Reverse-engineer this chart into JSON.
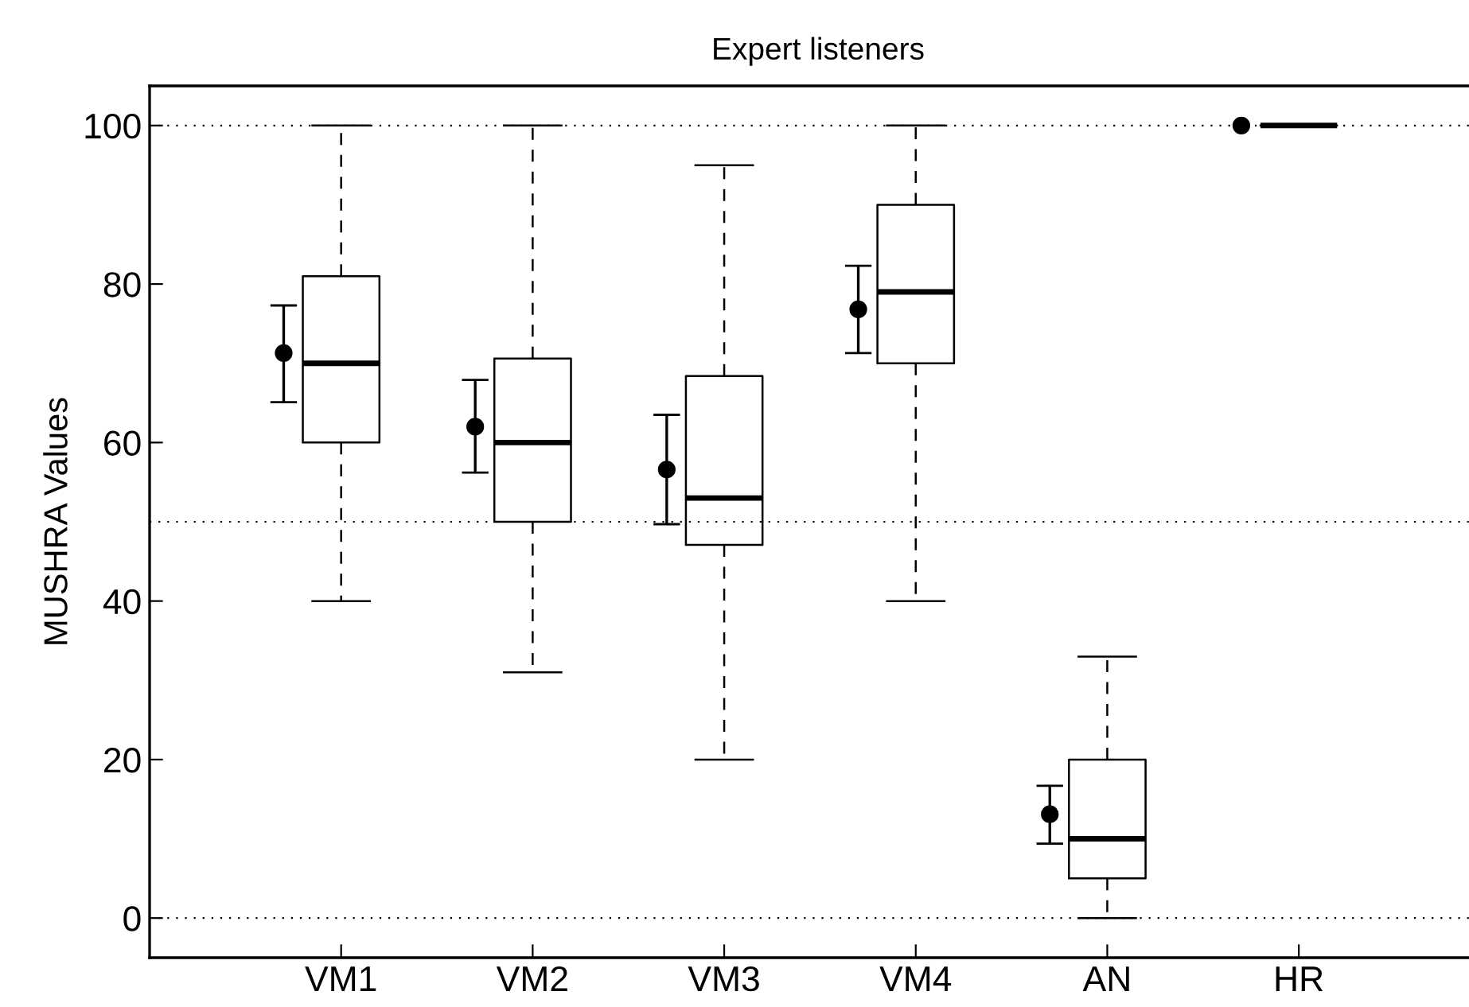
{
  "chart_data": {
    "type": "box",
    "title": "Expert listeners",
    "ylabel": "MUSHRA Values",
    "categories": [
      "VM1",
      "VM2",
      "VM3",
      "VM4",
      "AN",
      "HR"
    ],
    "ylim": [
      -5,
      105
    ],
    "yticks": [
      0,
      20,
      40,
      60,
      80,
      100
    ],
    "grid": false,
    "ref_lines": [
      {
        "axis": "y",
        "value": 0,
        "line_style": "dotted",
        "color": "#000000"
      },
      {
        "axis": "y",
        "value": 50,
        "line_style": "dotted",
        "color": "#000000"
      },
      {
        "axis": "y",
        "value": 100,
        "line_style": "dotted",
        "color": "#000000"
      }
    ],
    "series": [
      {
        "color": "#000000",
        "line_style": "dashed",
        "boxes": [
          {
            "low": 40,
            "q1": 60,
            "median": 70,
            "q3": 81,
            "high": 100
          },
          {
            "low": 31,
            "q1": 50,
            "median": 60,
            "q3": 70.6,
            "high": 100
          },
          {
            "low": 20,
            "q1": 47.1,
            "median": 53,
            "q3": 68.4,
            "high": 95
          },
          {
            "low": 40,
            "q1": 70,
            "median": 79,
            "q3": 90,
            "high": 100
          },
          {
            "low": 0,
            "q1": 5,
            "median": 10,
            "q3": 20,
            "high": 33
          },
          {
            "low": 100,
            "q1": 100,
            "median": 100,
            "q3": 100,
            "high": 100
          }
        ]
      },
      {
        "type": "scatter",
        "color": "#000000",
        "marker": "circle",
        "x": [
          "VM1",
          "VM2",
          "VM3",
          "VM4",
          "AN",
          "HR"
        ],
        "values": [
          71.3,
          62,
          56.6,
          76.8,
          13.1,
          100
        ],
        "errors": [
          [
            65.1,
            77.3
          ],
          [
            56.2,
            67.9
          ],
          [
            49.7,
            63.5
          ],
          [
            71.3,
            82.3
          ],
          [
            9.4,
            16.7
          ],
          null
        ]
      }
    ]
  }
}
